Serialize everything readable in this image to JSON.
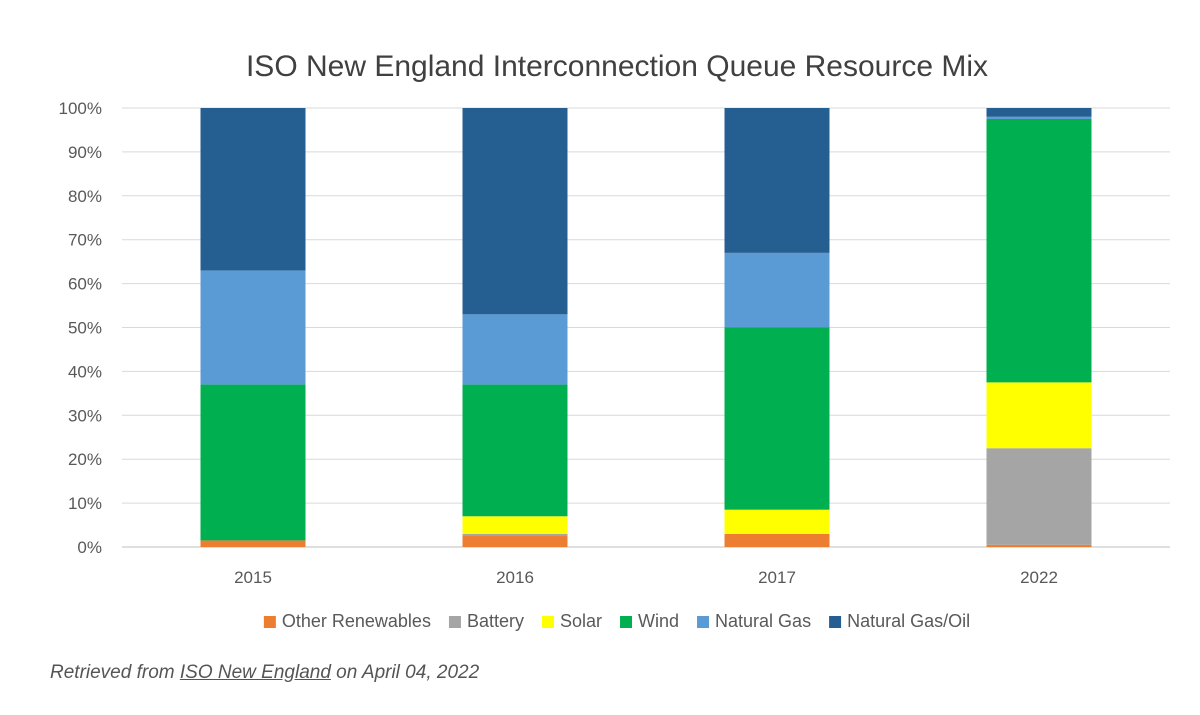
{
  "chart_data": {
    "type": "bar",
    "stacked": true,
    "title": "ISO New England Interconnection Queue Resource Mix",
    "xlabel": "",
    "ylabel": "",
    "categories": [
      "2015",
      "2016",
      "2017",
      "2022"
    ],
    "ylim": [
      0,
      100
    ],
    "yticks": [
      "0%",
      "10%",
      "20%",
      "30%",
      "40%",
      "50%",
      "60%",
      "70%",
      "80%",
      "90%",
      "100%"
    ],
    "grid": "horizontal",
    "legend_position": "bottom",
    "series": [
      {
        "name": "Other Renewables",
        "color": "#ED7D31",
        "values": [
          1.5,
          2.5,
          3.0,
          0.5
        ]
      },
      {
        "name": "Battery",
        "color": "#A5A5A5",
        "values": [
          0,
          0.5,
          0,
          22.0
        ]
      },
      {
        "name": "Solar",
        "color": "#FFFF00",
        "values": [
          0,
          4.0,
          5.5,
          15.0
        ]
      },
      {
        "name": "Wind",
        "color": "#00B050",
        "values": [
          35.5,
          30.0,
          41.5,
          60.0
        ]
      },
      {
        "name": "Natural Gas",
        "color": "#5B9BD5",
        "values": [
          26.0,
          16.0,
          17.0,
          0.5
        ]
      },
      {
        "name": "Natural Gas/Oil",
        "color": "#255E91",
        "values": [
          37.0,
          47.0,
          33.0,
          2.0
        ]
      }
    ]
  },
  "caption": {
    "prefix": "Retrieved from ",
    "link_text": "ISO New England",
    "suffix": " on April 04, 2022"
  }
}
